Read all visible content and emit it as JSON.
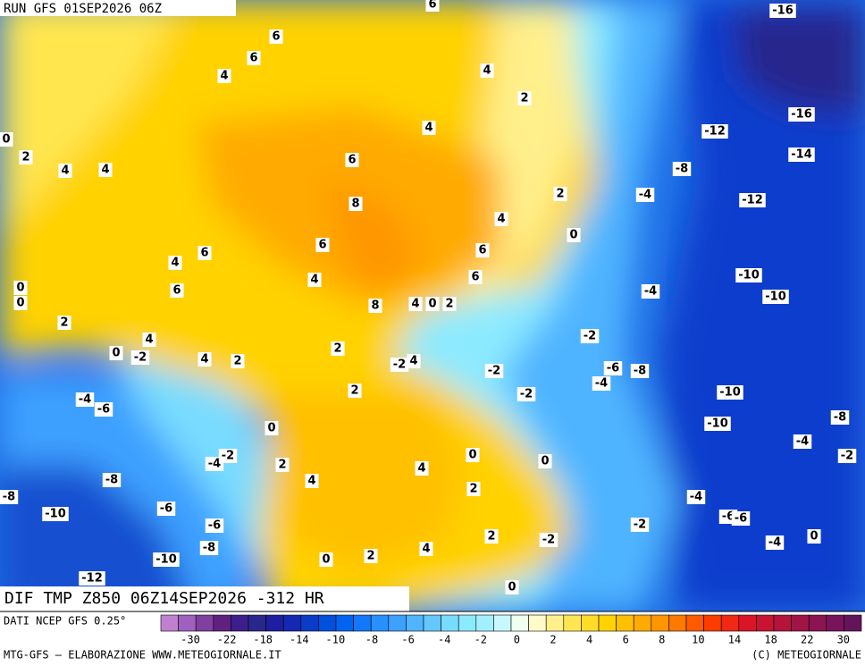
{
  "header": {
    "run": "RUN GFS 01SEP2026 06Z"
  },
  "map": {
    "contour_labels": [
      "6",
      "6",
      "6",
      "4",
      "4",
      "2",
      "4",
      "0",
      "2",
      "4",
      "4",
      "6",
      "2",
      "8",
      "4",
      "0",
      "6",
      "6",
      "6",
      "4",
      "6",
      "4",
      "0",
      "0",
      "6",
      "8",
      "4",
      "0",
      "2",
      "2",
      "4",
      "0",
      "-2",
      "4",
      "2",
      "2",
      "-2",
      "4",
      "2",
      "-2",
      "-2",
      "0",
      "-4",
      "-6",
      "-4",
      "-2",
      "2",
      "4",
      "4",
      "0",
      "0",
      "2",
      "-8",
      "-8",
      "-10",
      "-6",
      "-6",
      "-8",
      "-10",
      "-12",
      "0",
      "2",
      "4",
      "2",
      "-2",
      "-2",
      "0",
      "-16",
      "-16",
      "-12",
      "-14",
      "-8",
      "-4",
      "-12",
      "-10",
      "-10",
      "-4",
      "-2",
      "-6",
      "-8",
      "-4",
      "-10",
      "-10",
      "-8",
      "-4",
      "-2",
      "-4",
      "-6",
      "-6",
      "-4",
      "0"
    ]
  },
  "title": "DIF TMP Z850 06Z14SEP2026 -312 HR",
  "legend": {
    "source": "DATI NCEP GFS 0.25°",
    "ticks": [
      -30,
      -22,
      -18,
      -14,
      -10,
      -8,
      -6,
      -4,
      -2,
      0,
      2,
      4,
      6,
      8,
      10,
      14,
      18,
      22,
      30
    ]
  },
  "footer": {
    "left": "MTG-GFS — ELABORAZIONE WWW.METEOGIORNALE.IT",
    "right": "(C) METEOGIORNALE"
  }
}
